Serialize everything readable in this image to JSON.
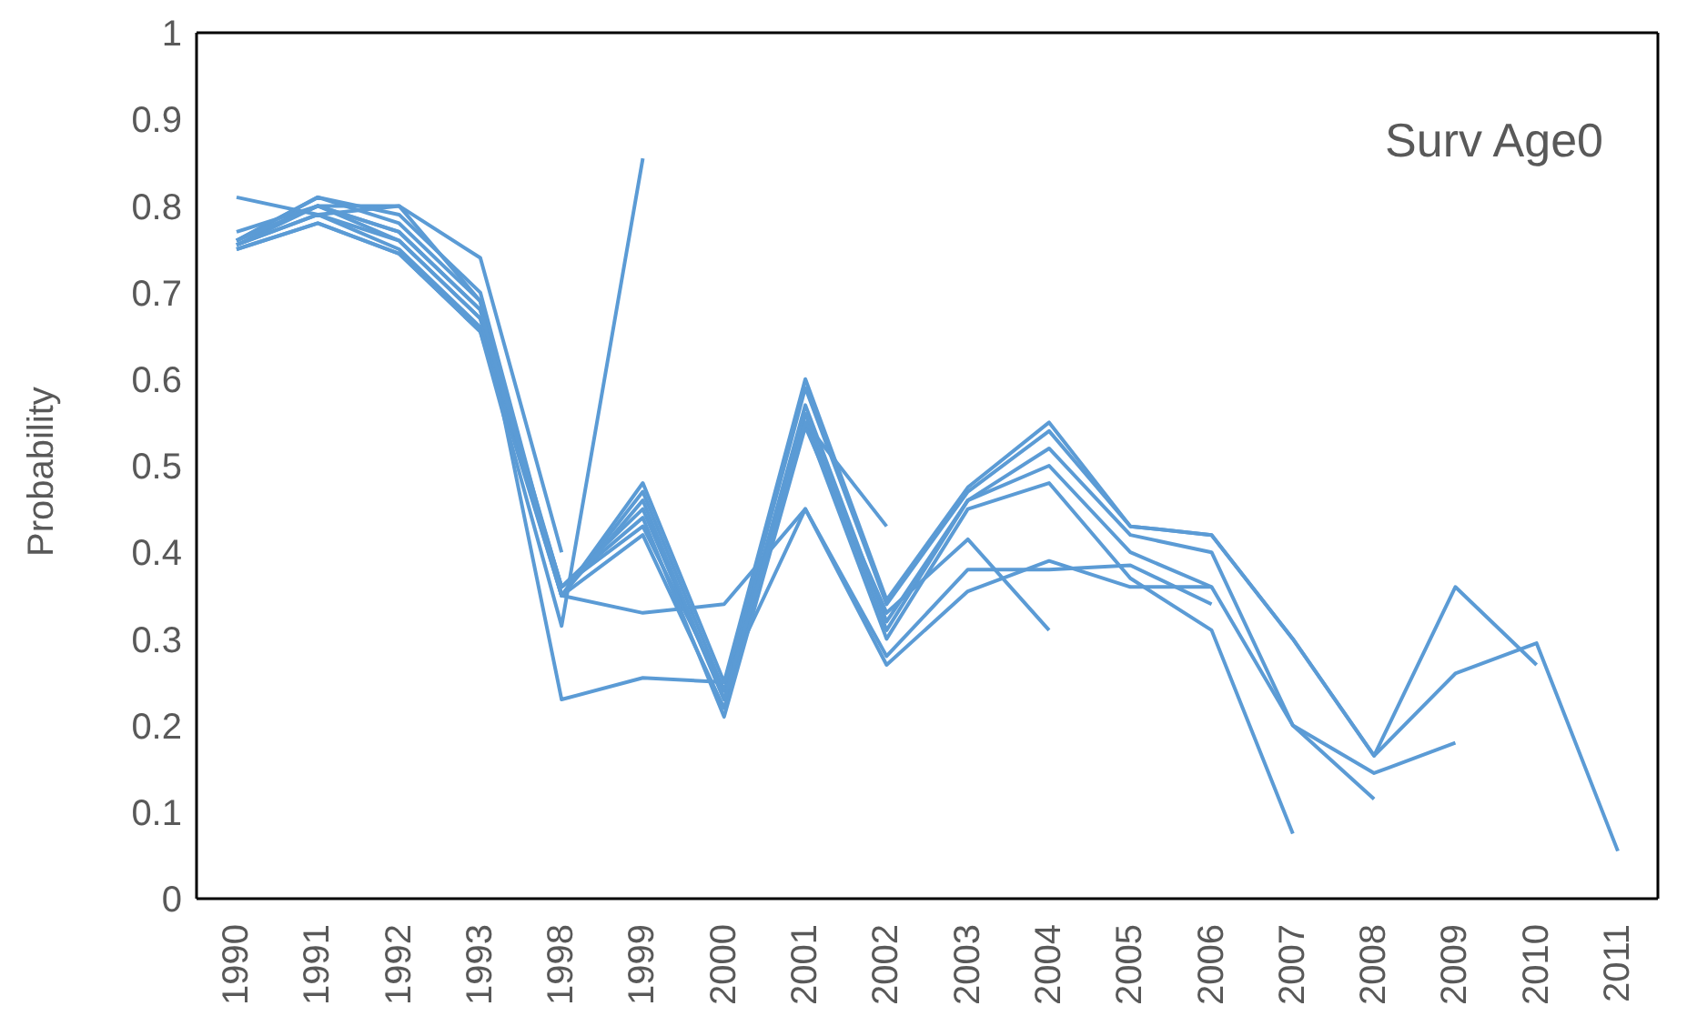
{
  "chart_data": {
    "type": "line",
    "title": "Surv Age0",
    "ylabel": "Probability",
    "categories": [
      "1990",
      "1991",
      "1992",
      "1993",
      "1998",
      "1999",
      "2000",
      "2001",
      "2002",
      "2003",
      "2004",
      "2005",
      "2006",
      "2007",
      "2008",
      "2009",
      "2010",
      "2011"
    ],
    "ylim": [
      0,
      1
    ],
    "yticks": [
      0,
      0.1,
      0.2,
      0.3,
      0.4,
      0.5,
      0.6,
      0.7,
      0.8,
      0.9,
      1
    ],
    "grid": false,
    "marker": "none",
    "line_style": "solid",
    "series": [
      {
        "color": "#5b9bd5",
        "values": [
          0.75,
          0.78,
          0.745,
          0.655,
          0.35,
          0.48,
          0.25,
          0.6,
          0.345,
          0.475,
          0.55,
          0.43,
          0.42,
          0.3,
          0.165,
          0.26,
          0.295,
          0.055
        ]
      },
      {
        "color": "#5b9bd5",
        "values": [
          0.755,
          0.79,
          0.75,
          0.66,
          0.35,
          0.47,
          0.24,
          0.59,
          0.34,
          0.47,
          0.54,
          0.43,
          0.42,
          0.3,
          0.165,
          0.36,
          0.27,
          null
        ]
      },
      {
        "color": "#5b9bd5",
        "values": [
          0.76,
          0.8,
          0.76,
          0.67,
          0.36,
          0.45,
          0.23,
          0.57,
          0.32,
          0.46,
          0.52,
          0.42,
          0.4,
          0.2,
          0.145,
          0.18,
          null,
          null
        ]
      },
      {
        "color": "#5b9bd5",
        "values": [
          0.755,
          0.8,
          0.77,
          0.68,
          0.36,
          0.43,
          0.24,
          0.56,
          0.31,
          0.46,
          0.5,
          0.4,
          0.36,
          0.2,
          0.115,
          null,
          null,
          null
        ]
      },
      {
        "color": "#5b9bd5",
        "values": [
          0.76,
          0.81,
          0.78,
          0.69,
          0.35,
          0.42,
          0.22,
          0.55,
          0.3,
          0.45,
          0.48,
          0.37,
          0.31,
          0.075,
          null,
          null,
          null,
          null
        ]
      },
      {
        "color": "#5b9bd5",
        "values": [
          0.76,
          0.81,
          0.79,
          0.7,
          0.35,
          0.33,
          0.34,
          0.45,
          0.28,
          0.38,
          0.38,
          0.385,
          0.34,
          null,
          null,
          null,
          null,
          null
        ]
      },
      {
        "color": "#5b9bd5",
        "values": [
          0.77,
          0.8,
          0.8,
          0.69,
          0.23,
          0.255,
          0.25,
          0.45,
          0.27,
          0.355,
          0.39,
          0.36,
          0.36,
          null,
          null,
          null,
          null,
          null
        ]
      },
      {
        "color": "#5b9bd5",
        "values": [
          0.755,
          0.79,
          0.76,
          0.67,
          0.36,
          0.44,
          0.21,
          0.545,
          0.33,
          0.415,
          0.31,
          null,
          null,
          null,
          null,
          null,
          null,
          null
        ]
      },
      {
        "color": "#5b9bd5",
        "values": [
          0.76,
          0.8,
          0.77,
          0.68,
          0.35,
          0.46,
          0.23,
          0.55,
          0.43,
          null,
          null,
          null,
          null,
          null,
          null,
          null,
          null,
          null
        ]
      },
      {
        "color": "#5b9bd5",
        "values": [
          0.75,
          0.78,
          0.745,
          0.655,
          0.315,
          0.855,
          null,
          null,
          null,
          null,
          null,
          null,
          null,
          null,
          null,
          null,
          null,
          null
        ]
      },
      {
        "color": "#5b9bd5",
        "values": [
          0.81,
          0.79,
          0.8,
          0.74,
          0.4,
          null,
          null,
          null,
          null,
          null,
          null,
          null,
          null,
          null,
          null,
          null,
          null,
          null
        ]
      }
    ]
  }
}
